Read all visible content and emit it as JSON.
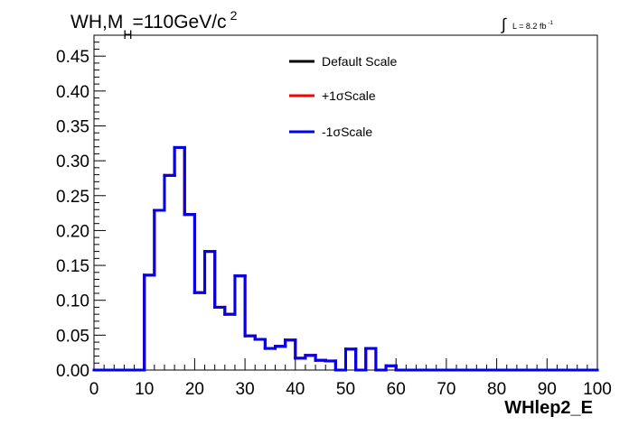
{
  "chart_data": {
    "type": "line",
    "title": {
      "prefix": "WH,M",
      "subscript": "H",
      "middle": "=110GeV/c",
      "superscript": "2"
    },
    "luminosity": {
      "symbol": "∫",
      "text": "L = 8.2 fb",
      "superscript": "-1"
    },
    "xlabel": "WHlep2_E",
    "ylabel": "",
    "xlim": [
      0,
      100
    ],
    "ylim": [
      0,
      0.48
    ],
    "xticks": [
      "0",
      "10",
      "20",
      "30",
      "40",
      "50",
      "60",
      "70",
      "80",
      "90",
      "100"
    ],
    "xtick_values": [
      0,
      10,
      20,
      30,
      40,
      50,
      60,
      70,
      80,
      90,
      100
    ],
    "yticks": [
      "0.00",
      "0.05",
      "0.10",
      "0.15",
      "0.20",
      "0.25",
      "0.30",
      "0.35",
      "0.40",
      "0.45"
    ],
    "ytick_values": [
      0,
      0.05,
      0.1,
      0.15,
      0.2,
      0.25,
      0.3,
      0.35,
      0.4,
      0.45
    ],
    "grid": false,
    "legend_position": "top-center",
    "bin_width": 2,
    "bin_edges_start": 0,
    "series": [
      {
        "name": "Default Scale",
        "color": "#000000",
        "values": [
          0,
          0,
          0,
          0,
          0,
          0.136,
          0.229,
          0.279,
          0.319,
          0.223,
          0.111,
          0.17,
          0.09,
          0.08,
          0.135,
          0.049,
          0.044,
          0.031,
          0.034,
          0.043,
          0.017,
          0.021,
          0.014,
          0.013,
          0,
          0.03,
          0,
          0.031,
          0,
          0.006,
          0,
          0,
          0,
          0,
          0,
          0,
          0,
          0,
          0,
          0,
          0,
          0,
          0,
          0,
          0,
          0,
          0,
          0,
          0,
          0
        ]
      },
      {
        "name": "+1σScale",
        "color": "#ff0000",
        "values": [
          0,
          0,
          0,
          0,
          0,
          0.136,
          0.229,
          0.279,
          0.319,
          0.223,
          0.111,
          0.17,
          0.09,
          0.08,
          0.135,
          0.049,
          0.044,
          0.031,
          0.034,
          0.043,
          0.017,
          0.021,
          0.014,
          0.013,
          0,
          0.03,
          0,
          0.031,
          0,
          0.006,
          0,
          0,
          0,
          0,
          0,
          0,
          0,
          0,
          0,
          0,
          0,
          0,
          0,
          0,
          0,
          0,
          0,
          0,
          0,
          0
        ]
      },
      {
        "name": "-1σScale",
        "color": "#0000ee",
        "values": [
          0,
          0,
          0,
          0,
          0,
          0.136,
          0.229,
          0.279,
          0.319,
          0.223,
          0.111,
          0.17,
          0.09,
          0.08,
          0.135,
          0.049,
          0.044,
          0.031,
          0.034,
          0.043,
          0.017,
          0.021,
          0.014,
          0.013,
          0,
          0.03,
          0,
          0.031,
          0,
          0.006,
          0,
          0,
          0,
          0,
          0,
          0,
          0,
          0,
          0,
          0,
          0,
          0,
          0,
          0,
          0,
          0,
          0,
          0,
          0,
          0
        ]
      }
    ]
  }
}
